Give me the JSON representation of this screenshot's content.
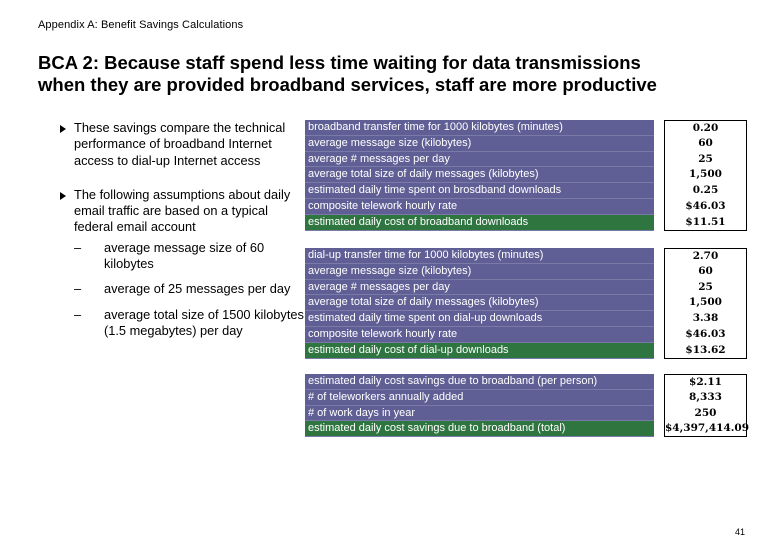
{
  "header": {
    "appendix": "Appendix A:  Benefit Savings Calculations"
  },
  "title": {
    "line1": "BCA 2: Because staff spend less time waiting for data transmissions",
    "line2": "when they are provided broadband services, staff are more productive"
  },
  "bullets": {
    "b1": "These savings compare the technical performance of broadband Internet access to dial-up Internet access",
    "b2": "The following assumptions about daily email traffic are based on a typical federal email account",
    "sub_dash": "–",
    "subs": [
      "average message size of 60 kilobytes",
      "average of 25 messages per day",
      "average total size of 1500 kilobytes (1.5 megabytes) per day"
    ]
  },
  "broadband": {
    "rows": [
      {
        "label": "broadband transfer time for 1000 kilobytes (minutes)",
        "value": "0.20"
      },
      {
        "label": "average message size (kilobytes)",
        "value": "60"
      },
      {
        "label": "average # messages per day",
        "value": "25"
      },
      {
        "label": "average total size of daily messages (kilobytes)",
        "value": "1,500"
      },
      {
        "label": "estimated daily time spent on brosdband downloads",
        "value": "0.25"
      },
      {
        "label": "composite telework hourly rate",
        "value": "$46.03"
      },
      {
        "label": "estimated daily cost of broadband downloads",
        "value": "$11.51"
      }
    ]
  },
  "dialup": {
    "rows": [
      {
        "label": "dial-up transfer time for 1000 kilobytes (minutes)",
        "value": "2.70"
      },
      {
        "label": "average message size (kilobytes)",
        "value": "60"
      },
      {
        "label": "average # messages per day",
        "value": "25"
      },
      {
        "label": "average total size of daily messages (kilobytes)",
        "value": "1,500"
      },
      {
        "label": "estimated daily time spent on dial-up downloads",
        "value": "3.38"
      },
      {
        "label": "composite telework hourly rate",
        "value": "$46.03"
      },
      {
        "label": "estimated daily cost of dial-up downloads",
        "value": "$13.62"
      }
    ]
  },
  "savings": {
    "rows": [
      {
        "label": "estimated daily cost savings due to broadband (per person)",
        "value": "$2.11"
      },
      {
        "label": "# of teleworkers annually added",
        "value": "8,333"
      },
      {
        "label": "# of work days in year",
        "value": "250"
      },
      {
        "label": "estimated daily cost savings due to broadband (total)",
        "value": "$4,397,414.09"
      }
    ]
  },
  "colors": {
    "label_bg": "#5f5f95",
    "total_bg": "#2e7540"
  },
  "icons": {
    "bullet": "triangle-right-icon"
  },
  "footer": {
    "page_number": "41"
  }
}
